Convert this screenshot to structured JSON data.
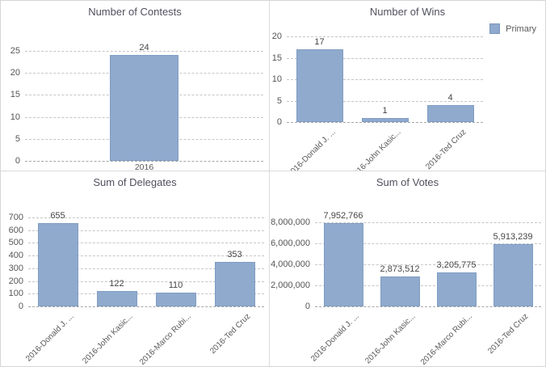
{
  "legend": {
    "label": "Primary"
  },
  "colors": {
    "bar_fill": "#8FAACD",
    "bar_border": "#819DC3",
    "title_text": "#50505E",
    "tick_text": "#555555",
    "value_text": "#454545",
    "category_text": "#595959",
    "gridline": "#C6C6C6",
    "panel_border": "#DBDBDB",
    "background": "#FFFFFF"
  },
  "chart_data": [
    {
      "type": "bar",
      "title": "Number of Contests",
      "categories": [
        "2016"
      ],
      "values": [
        24
      ],
      "value_labels": [
        "24"
      ],
      "ylim": [
        0,
        25
      ],
      "yticks": [
        0,
        5,
        10,
        15,
        20,
        25
      ],
      "ytick_labels": [
        "0",
        "5",
        "10",
        "15",
        "20",
        "25"
      ],
      "grid": "dashed",
      "legend": null,
      "rotated_x_labels": false
    },
    {
      "type": "bar",
      "title": "Number of Wins",
      "categories": [
        "2016-Donald J. ...",
        "2016-John Kasic...",
        "2016-Ted Cruz"
      ],
      "values": [
        17,
        1,
        4
      ],
      "value_labels": [
        "17",
        "1",
        "4"
      ],
      "ylim": [
        0,
        20
      ],
      "yticks": [
        0,
        5,
        10,
        15,
        20
      ],
      "ytick_labels": [
        "0",
        "5",
        "10",
        "15",
        "20"
      ],
      "grid": "dashed",
      "legend": "Primary",
      "legend_position": "top-right",
      "rotated_x_labels": true
    },
    {
      "type": "bar",
      "title": "Sum of Delegates",
      "categories": [
        "2016-Donald J. ...",
        "2016-John Kasic...",
        "2016-Marco Rubi...",
        "2016-Ted Cruz"
      ],
      "values": [
        655,
        122,
        110,
        353
      ],
      "value_labels": [
        "655",
        "122",
        "110",
        "353"
      ],
      "ylim": [
        0,
        700
      ],
      "yticks": [
        0,
        100,
        200,
        300,
        400,
        500,
        600,
        700
      ],
      "ytick_labels": [
        "0",
        "100",
        "200",
        "300",
        "400",
        "500",
        "600",
        "700"
      ],
      "grid": "dashed",
      "legend": null,
      "rotated_x_labels": true
    },
    {
      "type": "bar",
      "title": "Sum of Votes",
      "categories": [
        "2016-Donald J. ...",
        "2016-John Kasic...",
        "2016-Marco Rubi...",
        "2016-Ted Cruz"
      ],
      "values": [
        7952766,
        2873512,
        3205775,
        5913239
      ],
      "value_labels": [
        "7,952,766",
        "2,873,512",
        "3,205,775",
        "5,913,239"
      ],
      "ylim": [
        0,
        8000000
      ],
      "yticks": [
        0,
        2000000,
        4000000,
        6000000,
        8000000
      ],
      "ytick_labels": [
        "0",
        "2,000,000",
        "4,000,000",
        "6,000,000",
        "8,000,000"
      ],
      "grid": "dashed",
      "legend": null,
      "rotated_x_labels": true
    }
  ]
}
